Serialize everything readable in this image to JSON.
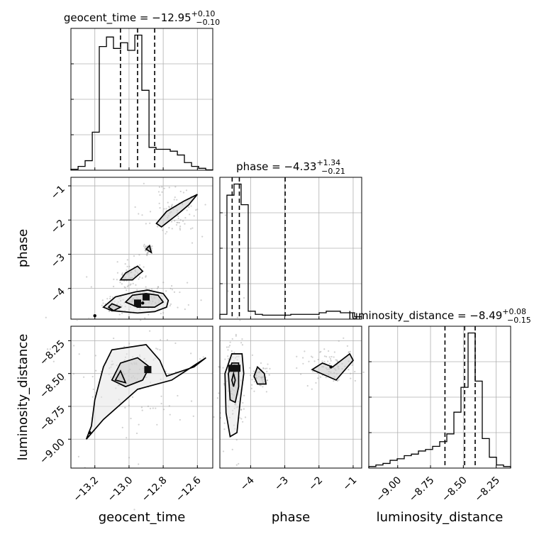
{
  "chart_data": {
    "type": "corner",
    "parameters": [
      "geocent_time",
      "phase",
      "luminosity_distance"
    ],
    "axis_labels": {
      "geocent_time": "geocent_time",
      "phase": "phase",
      "luminosity_distance": "luminosity_distance"
    },
    "ranges": {
      "geocent_time": [
        -13.34,
        -12.51
      ],
      "phase": [
        -4.9,
        -0.75
      ],
      "luminosity_distance": [
        -9.22,
        -8.14
      ]
    },
    "ticks": {
      "geocent_time": [
        -13.2,
        -13.0,
        -12.8,
        -12.6
      ],
      "phase": [
        -4,
        -3,
        -2,
        -1
      ],
      "luminosity_distance": [
        -9.0,
        -8.75,
        -8.5,
        -8.25
      ]
    },
    "tick_labels": {
      "geocent_time": [
        "−13.2",
        "−13.0",
        "−12.8",
        "−12.6"
      ],
      "phase": [
        "−4",
        "−3",
        "−2",
        "−1"
      ],
      "luminosity_distance": [
        "−9.00",
        "−8.75",
        "−8.50",
        "−8.25"
      ]
    },
    "titles": [
      {
        "param": "geocent_time",
        "text": "geocent_time = −12.95",
        "sup": "+0.10",
        "sub": "−0.10"
      },
      {
        "param": "phase",
        "text": "phase = −4.33",
        "sup": "+1.34",
        "sub": "−0.21"
      },
      {
        "param": "luminosity_distance",
        "text": "luminosity_distance = −8.49",
        "sup": "+0.08",
        "sub": "−0.15"
      }
    ],
    "quantiles": {
      "geocent_time": [
        -13.05,
        -12.95,
        -12.85
      ],
      "phase": [
        -4.54,
        -4.33,
        -2.99
      ],
      "luminosity_distance": [
        -8.64,
        -8.49,
        -8.41
      ]
    },
    "histograms": {
      "geocent_time": {
        "edges": [
          -13.34,
          -13.298,
          -13.257,
          -13.215,
          -13.174,
          -13.132,
          -13.091,
          -13.049,
          -13.008,
          -12.966,
          -12.925,
          -12.883,
          -12.842,
          -12.8,
          -12.759,
          -12.717,
          -12.676,
          -12.634,
          -12.593,
          -12.551,
          -12.51
        ],
        "counts": [
          0.5,
          2,
          5,
          20,
          65,
          70,
          64,
          67,
          63,
          71,
          42,
          12,
          11,
          11,
          10,
          8,
          4,
          2,
          1,
          0.2
        ]
      },
      "phase": {
        "edges": [
          -4.9,
          -4.693,
          -4.485,
          -4.278,
          -4.07,
          -3.863,
          -3.655,
          -3.448,
          -3.24,
          -3.033,
          -2.825,
          -2.618,
          -2.41,
          -2.203,
          -1.995,
          -1.788,
          -1.58,
          -1.373,
          -1.165,
          -0.958,
          -0.75
        ],
        "counts": [
          3,
          78,
          85,
          72,
          5,
          3,
          2.5,
          2.5,
          2.5,
          2.5,
          3,
          3,
          3,
          3,
          4,
          5,
          5,
          4,
          4,
          1.5
        ]
      },
      "luminosity_distance": {
        "edges": [
          -9.22,
          -9.166,
          -9.112,
          -9.058,
          -9.004,
          -8.95,
          -8.896,
          -8.842,
          -8.788,
          -8.734,
          -8.68,
          -8.626,
          -8.572,
          -8.518,
          -8.464,
          -8.41,
          -8.356,
          -8.302,
          -8.248,
          -8.194,
          -8.14
        ],
        "counts": [
          1,
          2,
          3,
          5,
          6,
          8,
          9,
          11,
          12,
          14,
          17,
          22,
          36,
          52,
          87,
          56,
          19,
          7,
          2,
          1
        ]
      }
    },
    "contours": {
      "geocent_time|phase": [
        [
          [
            -12.89,
            -4.05
          ],
          [
            -12.96,
            -4.1
          ],
          [
            -13.08,
            -4.25
          ],
          [
            -13.15,
            -4.55
          ],
          [
            -13.1,
            -4.65
          ],
          [
            -12.95,
            -4.72
          ],
          [
            -12.85,
            -4.68
          ],
          [
            -12.78,
            -4.55
          ],
          [
            -12.77,
            -4.35
          ],
          [
            -12.8,
            -4.15
          ],
          [
            -12.89,
            -4.05
          ]
        ],
        [
          [
            -12.9,
            -4.15
          ],
          [
            -12.98,
            -4.2
          ],
          [
            -13.02,
            -4.4
          ],
          [
            -12.95,
            -4.55
          ],
          [
            -12.85,
            -4.55
          ],
          [
            -12.8,
            -4.4
          ],
          [
            -12.83,
            -4.2
          ],
          [
            -12.9,
            -4.15
          ]
        ],
        [
          [
            -13.1,
            -4.45
          ],
          [
            -13.05,
            -4.55
          ],
          [
            -13.09,
            -4.65
          ],
          [
            -13.12,
            -4.55
          ],
          [
            -13.1,
            -4.45
          ]
        ],
        [
          [
            -12.98,
            -3.75
          ],
          [
            -12.92,
            -3.5
          ],
          [
            -12.95,
            -3.35
          ],
          [
            -13.02,
            -3.55
          ],
          [
            -13.05,
            -3.75
          ],
          [
            -12.98,
            -3.75
          ]
        ],
        [
          [
            -12.9,
            -2.85
          ],
          [
            -12.88,
            -2.75
          ],
          [
            -12.87,
            -2.95
          ],
          [
            -12.9,
            -2.85
          ]
        ],
        [
          [
            -12.81,
            -2.2
          ],
          [
            -12.72,
            -1.85
          ],
          [
            -12.65,
            -1.55
          ],
          [
            -12.6,
            -1.25
          ],
          [
            -12.68,
            -1.45
          ],
          [
            -12.78,
            -1.75
          ],
          [
            -12.84,
            -2.1
          ],
          [
            -12.81,
            -2.2
          ]
        ]
      ],
      "geocent_time|luminosity_distance": [
        [
          [
            -13.15,
            -8.45
          ],
          [
            -13.1,
            -8.32
          ],
          [
            -12.9,
            -8.28
          ],
          [
            -12.82,
            -8.4
          ],
          [
            -12.78,
            -8.52
          ],
          [
            -12.62,
            -8.45
          ],
          [
            -12.55,
            -8.38
          ],
          [
            -12.75,
            -8.55
          ],
          [
            -12.95,
            -8.62
          ],
          [
            -13.15,
            -8.85
          ],
          [
            -13.25,
            -9.0
          ],
          [
            -13.22,
            -8.9
          ],
          [
            -13.2,
            -8.7
          ],
          [
            -13.15,
            -8.45
          ]
        ],
        [
          [
            -13.05,
            -8.42
          ],
          [
            -12.95,
            -8.38
          ],
          [
            -12.88,
            -8.45
          ],
          [
            -12.92,
            -8.55
          ],
          [
            -13.02,
            -8.6
          ],
          [
            -13.1,
            -8.55
          ],
          [
            -13.05,
            -8.42
          ]
        ],
        [
          [
            -13.05,
            -8.48
          ],
          [
            -13.02,
            -8.57
          ],
          [
            -13.08,
            -8.55
          ],
          [
            -13.05,
            -8.48
          ]
        ]
      ],
      "phase|luminosity_distance": [
        [
          [
            -4.55,
            -8.35
          ],
          [
            -4.25,
            -8.35
          ],
          [
            -4.2,
            -8.5
          ],
          [
            -4.3,
            -8.7
          ],
          [
            -4.4,
            -8.95
          ],
          [
            -4.6,
            -8.98
          ],
          [
            -4.72,
            -8.8
          ],
          [
            -4.75,
            -8.5
          ],
          [
            -4.55,
            -8.35
          ]
        ],
        [
          [
            -4.55,
            -8.42
          ],
          [
            -4.35,
            -8.42
          ],
          [
            -4.35,
            -8.6
          ],
          [
            -4.45,
            -8.72
          ],
          [
            -4.6,
            -8.7
          ],
          [
            -4.65,
            -8.5
          ],
          [
            -4.55,
            -8.42
          ]
        ],
        [
          [
            -4.5,
            -8.5
          ],
          [
            -4.45,
            -8.55
          ],
          [
            -4.5,
            -8.6
          ],
          [
            -4.55,
            -8.55
          ],
          [
            -4.5,
            -8.5
          ]
        ],
        [
          [
            -3.8,
            -8.45
          ],
          [
            -3.6,
            -8.5
          ],
          [
            -3.55,
            -8.58
          ],
          [
            -3.8,
            -8.58
          ],
          [
            -3.9,
            -8.52
          ],
          [
            -3.8,
            -8.45
          ]
        ],
        [
          [
            -2.2,
            -8.47
          ],
          [
            -1.5,
            -8.55
          ],
          [
            -1.0,
            -8.4
          ],
          [
            -1.1,
            -8.35
          ],
          [
            -1.6,
            -8.45
          ],
          [
            -1.9,
            -8.42
          ],
          [
            -2.2,
            -8.47
          ]
        ]
      ]
    },
    "density_peaks": {
      "geocent_time|phase": [
        [
          -12.9,
          -4.25
        ],
        [
          -12.95,
          -4.43
        ]
      ],
      "geocent_time|luminosity_distance": [
        [
          -12.89,
          -8.47
        ]
      ],
      "phase|luminosity_distance": [
        [
          -4.55,
          -8.46
        ],
        [
          -4.4,
          -8.46
        ]
      ]
    },
    "data_points": {
      "geocent_time|phase": [
        [
          -13.2,
          -4.8
        ],
        [
          -12.92,
          -4.43
        ]
      ],
      "geocent_time|luminosity_distance": [
        [
          -13.23,
          -8.95
        ]
      ],
      "phase|luminosity_distance": [
        [
          -1.65,
          -8.45
        ]
      ]
    },
    "grid": true
  }
}
